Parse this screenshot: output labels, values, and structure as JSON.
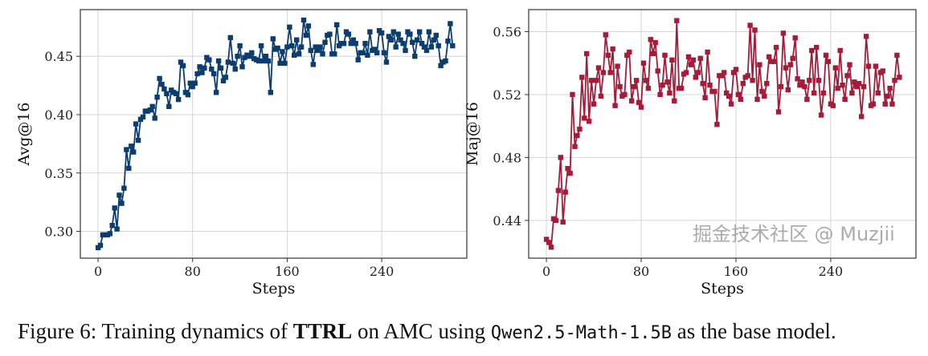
{
  "caption": {
    "prefix": "Figure 6: Training dynamics of ",
    "bold": "TTRL",
    "middle": " on AMC using ",
    "mono": "Qwen2.5-Math-1.5B",
    "suffix": " as the base model."
  },
  "watermark": "掘金技术社区 @ Muzjii",
  "chart_data": [
    {
      "type": "line",
      "marker": "square",
      "color": "#0b3d6e",
      "xlabel": "Steps",
      "ylabel": "Avg@16",
      "xlim": [
        -15,
        312
      ],
      "ylim": [
        0.277,
        0.49
      ],
      "xticks": [
        0,
        80,
        160,
        240
      ],
      "yticks": [
        0.3,
        0.35,
        0.4,
        0.45
      ],
      "ytick_labels": [
        "0.30",
        "0.35",
        "0.40",
        "0.45"
      ],
      "grid": true,
      "x": [
        0,
        2,
        4,
        6,
        8,
        10,
        12,
        14,
        16,
        18,
        20,
        22,
        24,
        26,
        28,
        30,
        32,
        34,
        36,
        38,
        40,
        42,
        44,
        46,
        48,
        50,
        52,
        54,
        56,
        58,
        60,
        62,
        64,
        66,
        68,
        70,
        72,
        74,
        76,
        78,
        80,
        82,
        84,
        86,
        88,
        90,
        92,
        94,
        96,
        98,
        100,
        102,
        104,
        106,
        108,
        110,
        112,
        114,
        116,
        118,
        120,
        122,
        124,
        126,
        128,
        130,
        132,
        134,
        136,
        138,
        140,
        142,
        144,
        146,
        148,
        150,
        152,
        154,
        156,
        158,
        160,
        162,
        164,
        166,
        168,
        170,
        172,
        174,
        176,
        178,
        180,
        182,
        184,
        186,
        188,
        190,
        192,
        194,
        196,
        198,
        200,
        202,
        204,
        206,
        208,
        210,
        212,
        214,
        216,
        218,
        220,
        222,
        224,
        226,
        228,
        230,
        232,
        234,
        236,
        238,
        240,
        242,
        244,
        246,
        248,
        250,
        252,
        254,
        256,
        258,
        260,
        262,
        264,
        266,
        268,
        270,
        272,
        274,
        276,
        278,
        280,
        282,
        284,
        286,
        288,
        290,
        292,
        294,
        296,
        298,
        300
      ],
      "y": [
        0.286,
        0.288,
        0.297,
        0.297,
        0.297,
        0.298,
        0.305,
        0.32,
        0.302,
        0.331,
        0.324,
        0.337,
        0.37,
        0.354,
        0.373,
        0.368,
        0.392,
        0.378,
        0.396,
        0.398,
        0.403,
        0.403,
        0.404,
        0.407,
        0.397,
        0.415,
        0.431,
        0.426,
        0.422,
        0.418,
        0.407,
        0.421,
        0.419,
        0.418,
        0.413,
        0.445,
        0.442,
        0.419,
        0.417,
        0.427,
        0.424,
        0.427,
        0.435,
        0.441,
        0.436,
        0.44,
        0.449,
        0.447,
        0.439,
        0.435,
        0.419,
        0.446,
        0.44,
        0.429,
        0.432,
        0.445,
        0.466,
        0.444,
        0.439,
        0.45,
        0.459,
        0.441,
        0.449,
        0.451,
        0.45,
        0.453,
        0.448,
        0.447,
        0.446,
        0.459,
        0.446,
        0.45,
        0.446,
        0.419,
        0.465,
        0.456,
        0.457,
        0.444,
        0.454,
        0.444,
        0.458,
        0.475,
        0.459,
        0.451,
        0.464,
        0.452,
        0.458,
        0.481,
        0.468,
        0.476,
        0.455,
        0.443,
        0.458,
        0.455,
        0.458,
        0.452,
        0.462,
        0.468,
        0.469,
        0.452,
        0.452,
        0.477,
        0.459,
        0.461,
        0.461,
        0.471,
        0.469,
        0.461,
        0.464,
        0.461,
        0.447,
        0.453,
        0.453,
        0.461,
        0.451,
        0.471,
        0.455,
        0.456,
        0.453,
        0.472,
        0.47,
        0.453,
        0.445,
        0.467,
        0.464,
        0.471,
        0.458,
        0.469,
        0.464,
        0.461,
        0.455,
        0.471,
        0.469,
        0.462,
        0.45,
        0.464,
        0.471,
        0.461,
        0.458,
        0.455,
        0.471,
        0.458,
        0.464,
        0.468,
        0.459,
        0.442,
        0.445,
        0.446,
        0.463,
        0.478,
        0.459
      ]
    },
    {
      "type": "line",
      "marker": "square",
      "color": "#a51c3a",
      "xlabel": "Steps",
      "ylabel": "Maj@16",
      "xlim": [
        -15,
        312
      ],
      "ylim": [
        0.416,
        0.574
      ],
      "xticks": [
        0,
        80,
        160,
        240
      ],
      "yticks": [
        0.44,
        0.48,
        0.52,
        0.56
      ],
      "ytick_labels": [
        "0.44",
        "0.48",
        "0.52",
        "0.56"
      ],
      "grid": true,
      "x": [
        0,
        2,
        4,
        6,
        8,
        10,
        12,
        14,
        16,
        18,
        20,
        22,
        24,
        26,
        28,
        30,
        32,
        34,
        36,
        38,
        40,
        42,
        44,
        46,
        48,
        50,
        52,
        54,
        56,
        58,
        60,
        62,
        64,
        66,
        68,
        70,
        72,
        74,
        76,
        78,
        80,
        82,
        84,
        86,
        88,
        90,
        92,
        94,
        96,
        98,
        100,
        102,
        104,
        106,
        108,
        110,
        112,
        114,
        116,
        118,
        120,
        122,
        124,
        126,
        128,
        130,
        132,
        134,
        136,
        138,
        140,
        142,
        144,
        146,
        148,
        150,
        152,
        154,
        156,
        158,
        160,
        162,
        164,
        166,
        168,
        170,
        172,
        174,
        176,
        178,
        180,
        182,
        184,
        186,
        188,
        190,
        192,
        194,
        196,
        198,
        200,
        202,
        204,
        206,
        208,
        210,
        212,
        214,
        216,
        218,
        220,
        222,
        224,
        226,
        228,
        230,
        232,
        234,
        236,
        238,
        240,
        242,
        244,
        246,
        248,
        250,
        252,
        254,
        256,
        258,
        260,
        262,
        264,
        266,
        268,
        270,
        272,
        274,
        276,
        278,
        280,
        282,
        284,
        286,
        288,
        290,
        292,
        294,
        296,
        298
      ],
      "y": [
        0.428,
        0.426,
        0.423,
        0.441,
        0.44,
        0.459,
        0.48,
        0.439,
        0.458,
        0.473,
        0.47,
        0.52,
        0.487,
        0.494,
        0.498,
        0.531,
        0.505,
        0.546,
        0.503,
        0.529,
        0.514,
        0.529,
        0.537,
        0.519,
        0.534,
        0.558,
        0.545,
        0.534,
        0.549,
        0.513,
        0.538,
        0.525,
        0.519,
        0.52,
        0.545,
        0.547,
        0.516,
        0.525,
        0.529,
        0.515,
        0.512,
        0.54,
        0.529,
        0.524,
        0.555,
        0.546,
        0.553,
        0.535,
        0.52,
        0.526,
        0.545,
        0.528,
        0.521,
        0.542,
        0.516,
        0.567,
        0.524,
        0.524,
        0.533,
        0.534,
        0.544,
        0.539,
        0.542,
        0.531,
        0.534,
        0.543,
        0.527,
        0.518,
        0.547,
        0.526,
        0.522,
        0.522,
        0.501,
        0.532,
        0.532,
        0.534,
        0.521,
        0.519,
        0.514,
        0.534,
        0.536,
        0.52,
        0.517,
        0.527,
        0.531,
        0.532,
        0.564,
        0.529,
        0.561,
        0.517,
        0.539,
        0.522,
        0.519,
        0.527,
        0.544,
        0.541,
        0.541,
        0.55,
        0.509,
        0.525,
        0.559,
        0.537,
        0.523,
        0.539,
        0.543,
        0.556,
        0.53,
        0.526,
        0.528,
        0.525,
        0.517,
        0.529,
        0.548,
        0.521,
        0.55,
        0.529,
        0.507,
        0.521,
        0.545,
        0.541,
        0.514,
        0.513,
        0.537,
        0.524,
        0.548,
        0.526,
        0.517,
        0.532,
        0.539,
        0.521,
        0.528,
        0.525,
        0.527,
        0.506,
        0.525,
        0.557,
        0.538,
        0.513,
        0.514,
        0.538,
        0.521,
        0.534,
        0.535,
        0.514,
        0.519,
        0.524,
        0.514,
        0.529,
        0.545,
        0.531
      ]
    }
  ]
}
